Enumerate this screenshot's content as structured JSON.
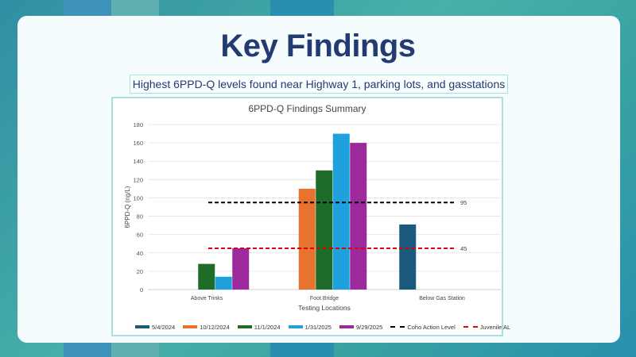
{
  "slide": {
    "title": "Key Findings",
    "subtitle": "Highest 6PPD-Q levels found near Highway 1, parking lots, and gasstations"
  },
  "colors": {
    "series": [
      "#1b5a7e",
      "#e8732f",
      "#1e6b2a",
      "#1ea1dc",
      "#9c2a9c"
    ],
    "coho_line": "#000000",
    "juvenile_line": "#e00000",
    "title": "#243a73"
  },
  "chart_data": {
    "type": "bar",
    "title": "6PPD-Q Findings Summary",
    "xlabel": "Testing Locations",
    "ylabel": "6PPD-Q (ng/L)",
    "ylim": [
      0,
      180
    ],
    "yticks": [
      0,
      20,
      40,
      60,
      80,
      100,
      120,
      140,
      160,
      180
    ],
    "grid": true,
    "legend_position": "bottom",
    "categories": [
      "Above Trinks",
      "Foot Bridge",
      "Below Gas Station"
    ],
    "series": [
      {
        "name": "5/4/2024",
        "values": [
          null,
          null,
          71
        ]
      },
      {
        "name": "10/12/2024",
        "values": [
          null,
          110,
          null
        ]
      },
      {
        "name": "11/1/2024",
        "values": [
          28,
          130,
          null
        ]
      },
      {
        "name": "1/31/2025",
        "values": [
          14,
          170,
          null
        ]
      },
      {
        "name": "9/29/2025",
        "values": [
          45,
          160,
          null
        ]
      }
    ],
    "reference_lines": [
      {
        "name": "Coho Action Level",
        "value": 95,
        "label": "95"
      },
      {
        "name": "Juvenile AL",
        "value": 45,
        "label": "45"
      }
    ]
  }
}
